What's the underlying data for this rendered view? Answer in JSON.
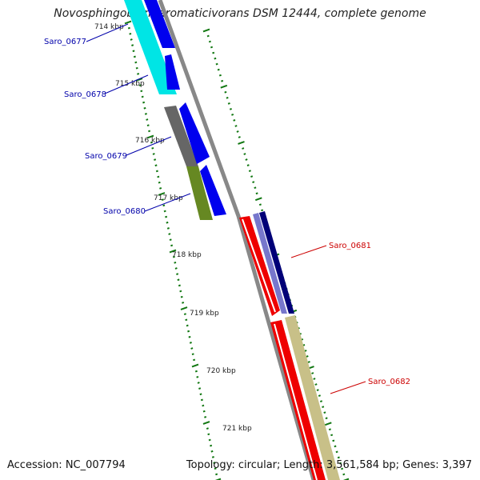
{
  "title": "Novosphingobium aromaticivorans DSM 12444, complete genome",
  "accession": "Accession: NC_007794",
  "summary": "Topology: circular; Length: 3,561,584 bp; Genes: 3,397",
  "colors": {
    "backbone": "#888888",
    "tick": "#117711",
    "label_left": "#0000aa",
    "label_right": "#cc0000",
    "cyan": "#00e5e5",
    "blue": "#0000ee",
    "gray": "#666666",
    "olive": "#668822",
    "red": "#ee0000",
    "lavender": "#7777cc",
    "navy": "#000077",
    "khaki": "#c8c088"
  },
  "kbp_labels": [
    "714 kbp",
    "715 kbp",
    "716 kbp",
    "717 kbp",
    "718 kbp",
    "719 kbp",
    "720 kbp",
    "721 kbp"
  ],
  "genes": [
    {
      "name": "Saro_0677",
      "side": "left"
    },
    {
      "name": "Saro_0678",
      "side": "left"
    },
    {
      "name": "Saro_0679",
      "side": "left"
    },
    {
      "name": "Saro_0680",
      "side": "left"
    },
    {
      "name": "Saro_0681",
      "side": "right"
    },
    {
      "name": "Saro_0682",
      "side": "right"
    }
  ]
}
